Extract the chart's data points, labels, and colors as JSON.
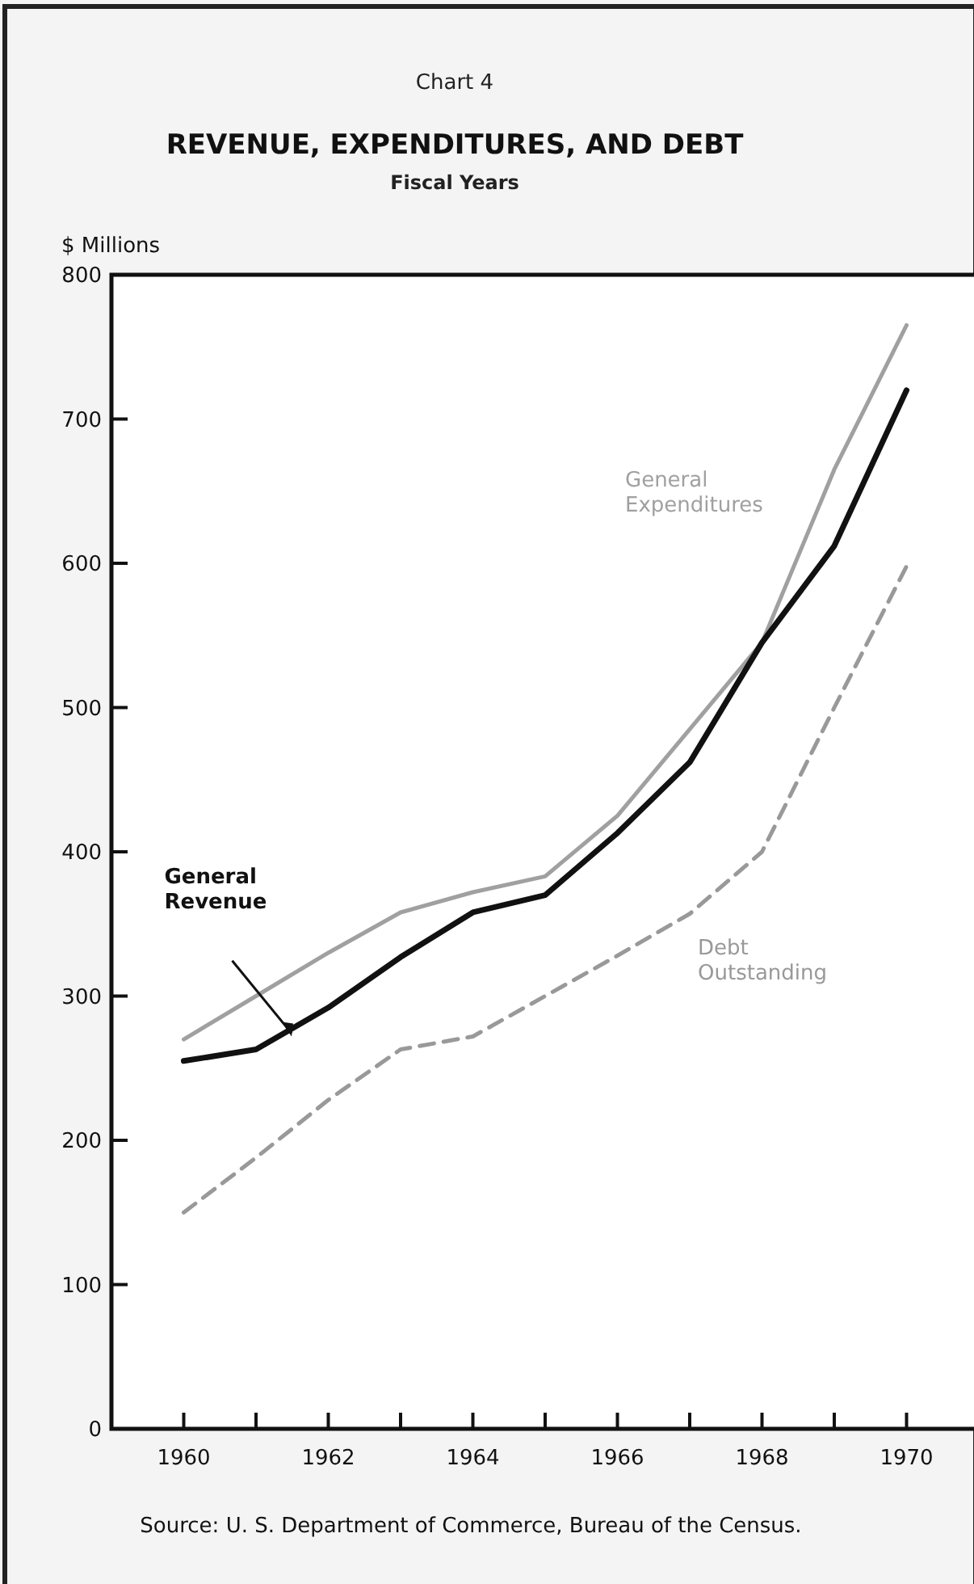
{
  "chart_data": {
    "type": "line",
    "title": "REVENUE, EXPENDITURES, AND DEBT",
    "subtitle": "Fiscal Years",
    "ylabel": "$ Millions",
    "annotations": [
      "Chart 4",
      "Source: U. S. Department of Commerce, Bureau of the Census."
    ],
    "x": [
      1960,
      1961,
      1962,
      1963,
      1964,
      1965,
      1966,
      1967,
      1968,
      1969,
      1970
    ],
    "series": [
      {
        "name": "General Expenditures",
        "color": "#a0a0a0",
        "line_style": "solid",
        "values": [
          270,
          300,
          330,
          358,
          372,
          383,
          425,
          485,
          545,
          665,
          765
        ]
      },
      {
        "name": "General Revenue",
        "color": "#111111",
        "line_style": "solid",
        "values": [
          255,
          263,
          292,
          327,
          358,
          370,
          413,
          462,
          545,
          612,
          720
        ]
      },
      {
        "name": "Debt Outstanding",
        "color": "#999999",
        "line_style": "dashed",
        "values": [
          150,
          188,
          228,
          263,
          272,
          300,
          328,
          357,
          400,
          500,
          598
        ]
      }
    ],
    "xlim": [
      1959,
      1971
    ],
    "xticks": [
      1960,
      {
        "value": 1961,
        "label": null
      },
      1962,
      {
        "value": 1963,
        "label": null
      },
      1964,
      {
        "value": 1965,
        "label": null
      },
      1966,
      {
        "value": 1967,
        "label": null
      },
      1968,
      {
        "value": 1969,
        "label": null
      },
      1970
    ],
    "ylim": [
      0,
      800
    ],
    "yticks": [
      0,
      100,
      200,
      300,
      400,
      500,
      600,
      700,
      800
    ],
    "grid": false,
    "marker": "none"
  }
}
